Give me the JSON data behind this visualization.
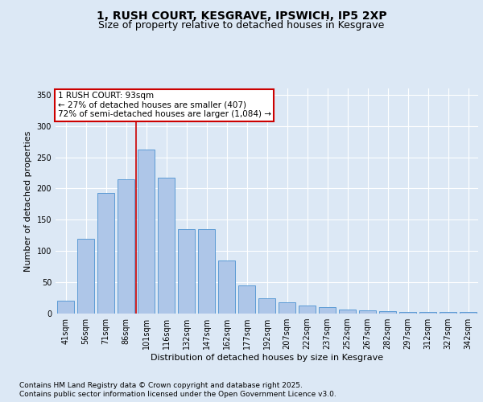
{
  "title": "1, RUSH COURT, KESGRAVE, IPSWICH, IP5 2XP",
  "subtitle": "Size of property relative to detached houses in Kesgrave",
  "xlabel": "Distribution of detached houses by size in Kesgrave",
  "ylabel": "Number of detached properties",
  "footer_line1": "Contains HM Land Registry data © Crown copyright and database right 2025.",
  "footer_line2": "Contains public sector information licensed under the Open Government Licence v3.0.",
  "annotation_line1": "1 RUSH COURT: 93sqm",
  "annotation_line2": "← 27% of detached houses are smaller (407)",
  "annotation_line3": "72% of semi-detached houses are larger (1,084) →",
  "bar_categories": [
    "41sqm",
    "56sqm",
    "71sqm",
    "86sqm",
    "101sqm",
    "116sqm",
    "132sqm",
    "147sqm",
    "162sqm",
    "177sqm",
    "192sqm",
    "207sqm",
    "222sqm",
    "237sqm",
    "252sqm",
    "267sqm",
    "282sqm",
    "297sqm",
    "312sqm",
    "327sqm",
    "342sqm"
  ],
  "bar_values": [
    20,
    119,
    193,
    215,
    262,
    217,
    135,
    135,
    85,
    45,
    25,
    18,
    13,
    10,
    7,
    5,
    4,
    3,
    3,
    3,
    2
  ],
  "bar_color": "#aec6e8",
  "bar_edgecolor": "#5b9bd5",
  "vline_color": "#cc0000",
  "vline_x": 3.5,
  "background_color": "#dce8f5",
  "plot_bg_color": "#dce8f5",
  "ylim": [
    0,
    360
  ],
  "yticks": [
    0,
    50,
    100,
    150,
    200,
    250,
    300,
    350
  ],
  "annotation_box_facecolor": "#ffffff",
  "annotation_box_edgecolor": "#cc0000",
  "grid_color": "#ffffff",
  "title_fontsize": 10,
  "subtitle_fontsize": 9,
  "label_fontsize": 8,
  "tick_fontsize": 7,
  "annotation_fontsize": 7.5,
  "footer_fontsize": 6.5
}
